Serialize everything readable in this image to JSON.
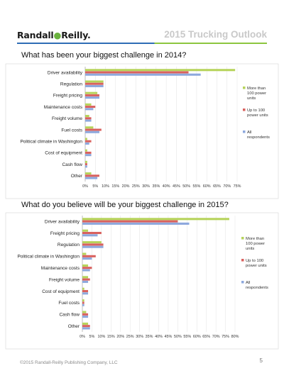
{
  "header": {
    "logo_name": "Randall",
    "logo_dot": "●",
    "logo_name2": "Reilly",
    "logo_tm": ".",
    "title": "2015 Trucking Outlook"
  },
  "colors": {
    "series_large": "#b6d35a",
    "series_small": "#d9615e",
    "series_all": "#8da8dd",
    "rule_blue": "#2f6db5",
    "rule_green": "#8cc63f"
  },
  "questions": [
    {
      "text": "What has been your biggest challenge in 2014?"
    },
    {
      "text": "What do you believe will be your biggest challenge in 2015?"
    }
  ],
  "chart_data": [
    {
      "type": "bar",
      "orientation": "horizontal",
      "title": "What has been your biggest challenge in 2014?",
      "categories": [
        "Driver availability",
        "Regulation",
        "Freight pricing",
        "Maintenance costs",
        "Freight volume",
        "Fuel costs",
        "Political climate in Washington",
        "Cost of equipment",
        "Cash flow",
        "Other"
      ],
      "series": [
        {
          "name": "More than 100 power units",
          "values": [
            74,
            9,
            6,
            3,
            2,
            4,
            1,
            1,
            1,
            3
          ]
        },
        {
          "name": "Up to 100 power units",
          "values": [
            51,
            9,
            7,
            5,
            3,
            8,
            3,
            3,
            1,
            7
          ]
        },
        {
          "name": "All respondents",
          "values": [
            57,
            9,
            7,
            4,
            3,
            7,
            2,
            3,
            1,
            6
          ]
        }
      ],
      "xlim": [
        0,
        75
      ],
      "x_ticks": [
        "0%",
        "5%",
        "10%",
        "15%",
        "20%",
        "25%",
        "30%",
        "35%",
        "40%",
        "45%",
        "50%",
        "55%",
        "60%",
        "65%",
        "70%",
        "75%"
      ],
      "grid": true,
      "legend": "right"
    },
    {
      "type": "bar",
      "orientation": "horizontal",
      "title": "What do you believe will be your biggest challenge in 2015?",
      "categories": [
        "Driver availability",
        "Freight pricing",
        "Regulation",
        "Political climate in Washington",
        "Maintenance costs",
        "Freight volume",
        "Cost of equipment",
        "Fuel costs",
        "Cash flow",
        "Other"
      ],
      "series": [
        {
          "name": "More than 100 power units",
          "values": [
            77,
            3,
            10,
            2,
            3,
            3,
            1,
            1,
            2,
            3
          ]
        },
        {
          "name": "Up to 100 power units",
          "values": [
            50,
            10,
            11,
            7,
            5,
            4,
            3,
            1,
            3,
            4
          ]
        },
        {
          "name": "All respondents",
          "values": [
            56,
            8,
            11,
            5,
            4,
            3,
            3,
            1,
            3,
            4
          ]
        }
      ],
      "xlim": [
        0,
        80
      ],
      "x_ticks": [
        "0%",
        "5%",
        "10%",
        "15%",
        "20%",
        "25%",
        "30%",
        "35%",
        "40%",
        "45%",
        "50%",
        "55%",
        "60%",
        "65%",
        "70%",
        "75%",
        "80%"
      ],
      "grid": true,
      "legend": "right"
    }
  ],
  "legend_lines": [
    [
      "More than",
      "100 power",
      "units"
    ],
    [
      "Up to 100",
      "power units"
    ],
    [
      "All",
      "respondents"
    ]
  ],
  "footer": {
    "copyright": "©2015 Randall-Reilly Publishing Company, LLC",
    "page": "5"
  }
}
